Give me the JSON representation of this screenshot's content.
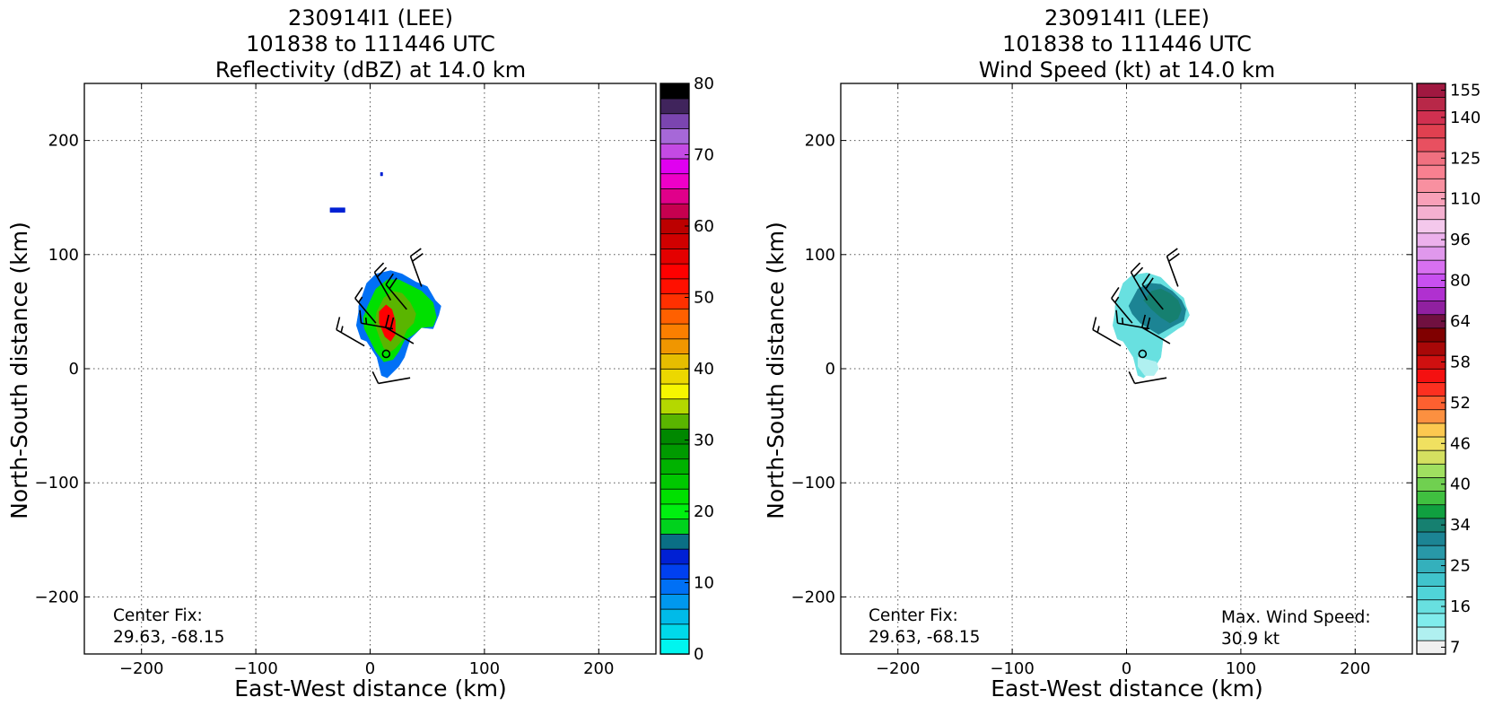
{
  "chart_data": [
    {
      "type": "heatmap",
      "title_lines": [
        "230914I1 (LEE)",
        "101838 to 111446 UTC",
        "Reflectivity (dBZ) at 14.0 km"
      ],
      "xlabel": "East-West distance (km)",
      "ylabel": "North-South distance (km)",
      "xlim": [
        -250,
        250
      ],
      "ylim": [
        -250,
        250
      ],
      "xticks": [
        -200,
        -100,
        0,
        100,
        200
      ],
      "yticks": [
        -200,
        -100,
        0,
        100,
        200
      ],
      "grid": true,
      "center_fix_label": "Center Fix:",
      "center_fix_value": "29.63, -68.15",
      "colorbar": {
        "ticks": [
          "0",
          "10",
          "20",
          "30",
          "40",
          "50",
          "60",
          "70",
          "80"
        ],
        "tick_values": [
          0,
          10,
          20,
          30,
          40,
          50,
          60,
          70,
          80
        ],
        "min": 0,
        "max": 80,
        "colors": [
          "#00f5ef",
          "#00d9ea",
          "#00bbe8",
          "#0098ee",
          "#0070f5",
          "#0040f0",
          "#0020d4",
          "#0a6f85",
          "#00d21d",
          "#00f010",
          "#00e000",
          "#00c800",
          "#00b200",
          "#009a00",
          "#008800",
          "#5ab500",
          "#b4d800",
          "#f6f600",
          "#ecd800",
          "#e6bd00",
          "#f09600",
          "#fb7f00",
          "#ff6000",
          "#ff3000",
          "#ff1000",
          "#ff0000",
          "#e40000",
          "#d00000",
          "#bc0000",
          "#c6004f",
          "#e0008a",
          "#ee00c8",
          "#e000f0",
          "#c44ae4",
          "#a668d8",
          "#7b45b0",
          "#40245c",
          "#000000"
        ]
      },
      "patches": [
        {
          "x": [
            -35,
            -22,
            -22,
            -35
          ],
          "y": [
            141,
            141,
            137,
            137
          ],
          "value": 6
        },
        {
          "x": [
            9,
            11,
            11,
            9
          ],
          "y": [
            172,
            172,
            169,
            169
          ],
          "value": 6
        },
        {
          "x": [
            -10,
            -3,
            5,
            18,
            28,
            40,
            50,
            57,
            62,
            60,
            55,
            45,
            35,
            30,
            25,
            15,
            10,
            6,
            -3,
            -8,
            -12,
            -10
          ],
          "y": [
            55,
            75,
            83,
            86,
            83,
            76,
            72,
            60,
            55,
            47,
            35,
            36,
            26,
            10,
            2,
            -8,
            -6,
            10,
            24,
            26,
            38,
            50
          ],
          "value": 4
        },
        {
          "x": [
            -2,
            5,
            15,
            25,
            35,
            45,
            55,
            58,
            55,
            45,
            38,
            30,
            25,
            20,
            12,
            5,
            0,
            -5,
            -6
          ],
          "y": [
            55,
            70,
            78,
            78,
            73,
            68,
            58,
            45,
            37,
            36,
            30,
            25,
            15,
            8,
            6,
            15,
            25,
            35,
            45
          ],
          "value": 10
        },
        {
          "x": [
            6,
            12,
            20,
            28,
            35,
            40,
            38,
            32,
            28,
            22,
            18,
            12,
            8,
            4
          ],
          "y": [
            50,
            62,
            68,
            66,
            58,
            48,
            40,
            34,
            25,
            18,
            15,
            18,
            28,
            40
          ],
          "value": 15
        },
        {
          "x": [
            8,
            14,
            19,
            22,
            22,
            18,
            13,
            8
          ],
          "y": [
            50,
            56,
            52,
            42,
            30,
            24,
            28,
            40
          ],
          "value": 25
        }
      ],
      "center_marker": {
        "x": 14,
        "y": 13
      },
      "barbs": [
        {
          "x": -5,
          "y": 20,
          "speed": 15,
          "dir": 300
        },
        {
          "x": 5,
          "y": 40,
          "speed": 15,
          "dir": 320
        },
        {
          "x": 18,
          "y": 60,
          "speed": 20,
          "dir": 330
        },
        {
          "x": 32,
          "y": 52,
          "speed": 20,
          "dir": 320
        },
        {
          "x": 38,
          "y": 22,
          "speed": 20,
          "dir": 300
        },
        {
          "x": 35,
          "y": -8,
          "speed": 10,
          "dir": 260
        },
        {
          "x": 45,
          "y": 72,
          "speed": 20,
          "dir": 340
        },
        {
          "x": 20,
          "y": 35,
          "speed": 15,
          "dir": 280
        }
      ]
    },
    {
      "type": "heatmap",
      "title_lines": [
        "230914I1 (LEE)",
        "101838 to 111446 UTC",
        "Wind Speed (kt) at 14.0 km"
      ],
      "xlabel": "East-West distance (km)",
      "ylabel": "North-South distance (km)",
      "xlim": [
        -250,
        250
      ],
      "ylim": [
        -250,
        250
      ],
      "xticks": [
        -200,
        -100,
        0,
        100,
        200
      ],
      "yticks": [
        -200,
        -100,
        0,
        100,
        200
      ],
      "grid": true,
      "center_fix_label": "Center Fix:",
      "center_fix_value": "29.63, -68.15",
      "max_wind_label": "Max. Wind Speed:",
      "max_wind_value": "30.9 kt",
      "colorbar": {
        "ticks": [
          "7",
          "16",
          "25",
          "34",
          "40",
          "46",
          "52",
          "58",
          "64",
          "80",
          "96",
          "110",
          "125",
          "140",
          "155"
        ],
        "colors": [
          "#f0f0f0",
          "#b0f0f0",
          "#80ecec",
          "#68e0e0",
          "#50d4d8",
          "#40c4cc",
          "#34b0bc",
          "#2898a8",
          "#1c8494",
          "#168070",
          "#10a040",
          "#40c040",
          "#70d050",
          "#a0e060",
          "#d4e060",
          "#f0e060",
          "#fcc850",
          "#fc9040",
          "#fc6030",
          "#fc3020",
          "#f41010",
          "#d01010",
          "#a80808",
          "#800000",
          "#701040",
          "#9020a0",
          "#b030d0",
          "#c850f0",
          "#d870f0",
          "#e098ec",
          "#ecb0ec",
          "#f4c8ec",
          "#f4b0d0",
          "#f8a0b8",
          "#f890a0",
          "#f88090",
          "#f07080",
          "#e85060",
          "#e04050",
          "#d03050",
          "#b82848",
          "#a01840"
        ],
        "tick_band_index": [
          0,
          3,
          6,
          9,
          12,
          15,
          18,
          21,
          24,
          27,
          30,
          33,
          36,
          39,
          41
        ]
      },
      "patches": [
        {
          "x": [
            -10,
            -3,
            5,
            18,
            30,
            40,
            50,
            52,
            55,
            50,
            45,
            38,
            32,
            30,
            25,
            15,
            10,
            6,
            -3,
            -8,
            -12,
            -10
          ],
          "y": [
            55,
            75,
            82,
            84,
            80,
            70,
            62,
            55,
            47,
            38,
            35,
            30,
            26,
            10,
            2,
            -8,
            -6,
            10,
            24,
            26,
            38,
            50
          ],
          "value": 3
        },
        {
          "x": [
            2,
            10,
            20,
            30,
            40,
            48,
            52,
            50,
            42,
            35,
            28,
            20,
            12,
            5
          ],
          "y": [
            55,
            70,
            75,
            74,
            68,
            60,
            52,
            42,
            38,
            34,
            30,
            35,
            40,
            48
          ],
          "value": 8
        },
        {
          "x": [
            15,
            22,
            30,
            38,
            45,
            48,
            45,
            38,
            30,
            22
          ],
          "y": [
            60,
            68,
            70,
            66,
            60,
            52,
            44,
            40,
            45,
            52
          ],
          "value": 9
        },
        {
          "x": [
            10,
            18,
            26,
            28,
            24,
            16,
            10
          ],
          "y": [
            10,
            8,
            6,
            0,
            -6,
            -6,
            2
          ],
          "value": 1
        }
      ],
      "center_marker": {
        "x": 14,
        "y": 13
      },
      "barbs": [
        {
          "x": -5,
          "y": 20,
          "speed": 15,
          "dir": 300
        },
        {
          "x": 5,
          "y": 40,
          "speed": 15,
          "dir": 320
        },
        {
          "x": 18,
          "y": 60,
          "speed": 20,
          "dir": 330
        },
        {
          "x": 32,
          "y": 52,
          "speed": 20,
          "dir": 320
        },
        {
          "x": 38,
          "y": 22,
          "speed": 20,
          "dir": 300
        },
        {
          "x": 35,
          "y": -8,
          "speed": 10,
          "dir": 260
        },
        {
          "x": 45,
          "y": 72,
          "speed": 20,
          "dir": 340
        },
        {
          "x": 20,
          "y": 35,
          "speed": 15,
          "dir": 280
        }
      ]
    }
  ]
}
